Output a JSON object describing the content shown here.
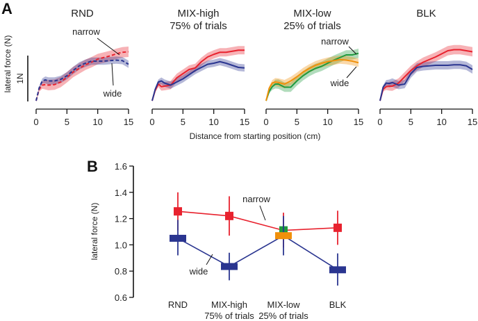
{
  "chart_data": [
    {
      "panel": "A",
      "type": "line",
      "ylabel": "lateral force (N)",
      "scale_bar_label": "1N",
      "xlabel": "Distance from starting position (cm)",
      "xlim": [
        0,
        15
      ],
      "xticks": [
        "0",
        "5",
        "10",
        "15"
      ],
      "colors": {
        "narrow": "#e8222e",
        "wide": "#2a3590",
        "mixlow_narrow": "#1f9a3e",
        "mixlow_wide": "#f0900a"
      },
      "subplots": [
        {
          "title": "RND",
          "title2": "",
          "dashed": true,
          "annotations": {
            "narrow": "narrow",
            "wide": "wide"
          },
          "series": [
            {
              "name": "narrow",
              "color": "#e8222e",
              "band": 0.1,
              "x": [
                0,
                0.5,
                1,
                1.5,
                2,
                3,
                4,
                5,
                6,
                7,
                8,
                9,
                10,
                11,
                12,
                13,
                14,
                15
              ],
              "y": [
                0.0,
                0.22,
                0.3,
                0.31,
                0.3,
                0.31,
                0.36,
                0.45,
                0.55,
                0.62,
                0.69,
                0.74,
                0.8,
                0.83,
                0.86,
                0.9,
                0.93,
                0.94
              ]
            },
            {
              "name": "wide",
              "color": "#2a3590",
              "band": 0.07,
              "x": [
                0,
                0.5,
                1,
                1.5,
                2,
                3,
                4,
                5,
                6,
                7,
                8,
                9,
                10,
                11,
                12,
                13,
                14,
                15
              ],
              "y": [
                0.0,
                0.25,
                0.38,
                0.4,
                0.38,
                0.38,
                0.41,
                0.48,
                0.58,
                0.67,
                0.72,
                0.76,
                0.76,
                0.76,
                0.77,
                0.78,
                0.77,
                0.7
              ]
            }
          ]
        },
        {
          "title": "MIX-high",
          "title2": "75% of trials",
          "dashed": false,
          "annotations": {},
          "series": [
            {
              "name": "narrow",
              "color": "#e8222e",
              "band": 0.08,
              "x": [
                0,
                0.5,
                1,
                1.5,
                2,
                3,
                4,
                5,
                6,
                7,
                8,
                9,
                10,
                11,
                12,
                13,
                14,
                15
              ],
              "y": [
                0.0,
                0.2,
                0.32,
                0.27,
                0.28,
                0.3,
                0.44,
                0.52,
                0.6,
                0.63,
                0.75,
                0.84,
                0.89,
                0.93,
                0.93,
                0.95,
                0.97,
                0.97
              ]
            },
            {
              "name": "wide",
              "color": "#2a3590",
              "band": 0.07,
              "x": [
                0,
                0.5,
                1,
                1.5,
                2,
                3,
                4,
                5,
                6,
                7,
                8,
                9,
                10,
                11,
                12,
                13,
                14,
                15
              ],
              "y": [
                0.0,
                0.22,
                0.36,
                0.38,
                0.34,
                0.3,
                0.36,
                0.42,
                0.5,
                0.58,
                0.64,
                0.7,
                0.72,
                0.75,
                0.72,
                0.68,
                0.64,
                0.63
              ]
            }
          ]
        },
        {
          "title": "MIX-low",
          "title2": "25% of trials",
          "dashed": false,
          "annotations": {
            "narrow": "narrow",
            "wide": "wide"
          },
          "series": [
            {
              "name": "narrow",
              "color": "#1f9a3e",
              "band": 0.09,
              "x": [
                0,
                0.5,
                1,
                1.5,
                2,
                3,
                4,
                5,
                6,
                7,
                8,
                9,
                10,
                11,
                12,
                13,
                14,
                15
              ],
              "y": [
                0.0,
                0.18,
                0.27,
                0.32,
                0.32,
                0.26,
                0.26,
                0.38,
                0.48,
                0.56,
                0.62,
                0.66,
                0.72,
                0.78,
                0.83,
                0.88,
                0.88,
                0.91
              ]
            },
            {
              "name": "wide",
              "color": "#f0900a",
              "band": 0.08,
              "x": [
                0,
                0.5,
                1,
                1.5,
                2,
                3,
                4,
                5,
                6,
                7,
                8,
                9,
                10,
                11,
                12,
                13,
                14,
                15
              ],
              "y": [
                0.0,
                0.24,
                0.34,
                0.36,
                0.35,
                0.32,
                0.38,
                0.46,
                0.55,
                0.62,
                0.68,
                0.72,
                0.75,
                0.77,
                0.79,
                0.78,
                0.76,
                0.73
              ]
            }
          ]
        },
        {
          "title": "BLK",
          "title2": "",
          "dashed": false,
          "annotations": {},
          "series": [
            {
              "name": "narrow",
              "color": "#e8222e",
              "band": 0.09,
              "x": [
                0,
                0.5,
                1,
                1.5,
                2,
                3,
                4,
                5,
                6,
                7,
                8,
                9,
                10,
                11,
                12,
                13,
                14,
                15
              ],
              "y": [
                0.0,
                0.22,
                0.27,
                0.28,
                0.28,
                0.34,
                0.46,
                0.58,
                0.67,
                0.74,
                0.79,
                0.84,
                0.9,
                0.96,
                0.98,
                0.98,
                0.96,
                0.94
              ]
            },
            {
              "name": "wide",
              "color": "#2a3590",
              "band": 0.08,
              "x": [
                0,
                0.5,
                1,
                1.5,
                2,
                3,
                4,
                5,
                6,
                7,
                8,
                9,
                10,
                11,
                12,
                13,
                14,
                15
              ],
              "y": [
                0.0,
                0.26,
                0.34,
                0.33,
                0.35,
                0.3,
                0.32,
                0.52,
                0.64,
                0.66,
                0.67,
                0.68,
                0.68,
                0.68,
                0.69,
                0.69,
                0.67,
                0.6
              ]
            }
          ]
        }
      ]
    },
    {
      "panel": "B",
      "type": "line",
      "ylabel": "lateral force (N)",
      "ylim": [
        0.6,
        1.6
      ],
      "yticks": [
        "0.6",
        "0.8",
        "1.0",
        "1.2",
        "1.4",
        "1.6"
      ],
      "categories": [
        {
          "line1": "RND",
          "line2": ""
        },
        {
          "line1": "MIX-high",
          "line2": "75% of trials"
        },
        {
          "line1": "MIX-low",
          "line2": "25% of trials"
        },
        {
          "line1": "BLK",
          "line2": ""
        }
      ],
      "series": [
        {
          "name": "narrow",
          "label": "narrow",
          "color": "#e8222e",
          "values": [
            1.255,
            1.22,
            1.11,
            1.13
          ],
          "err_low": [
            1.11,
            1.07,
            0.98,
            1.0
          ],
          "err_high": [
            1.4,
            1.37,
            1.245,
            1.26
          ],
          "marker_colors": [
            "#e8222e",
            "#e8222e",
            "#1f9a3e",
            "#e8222e"
          ]
        },
        {
          "name": "wide",
          "label": "wide",
          "color": "#2a3590",
          "values": [
            1.05,
            0.835,
            1.07,
            0.81
          ],
          "err_low": [
            0.92,
            0.73,
            0.92,
            0.69
          ],
          "err_high": [
            1.19,
            0.94,
            1.22,
            0.935
          ],
          "marker_colors": [
            "#2a3590",
            "#2a3590",
            "#f0900a",
            "#2a3590"
          ]
        }
      ]
    }
  ]
}
